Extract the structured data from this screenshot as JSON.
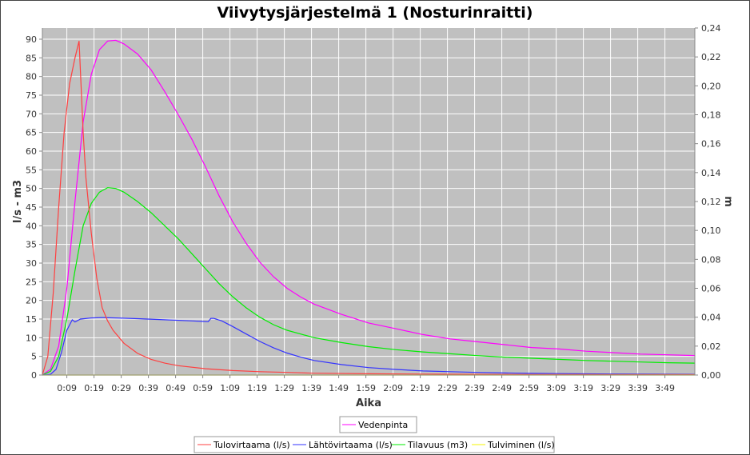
{
  "chart_data": {
    "type": "line",
    "title": "Viivytysjärjestelmä 1 (Nosturinraitti)",
    "xlabel": "Aika",
    "ylabel": "l/s - m3",
    "ylabel_right": "m",
    "grid": true,
    "legend_placement": "bottom",
    "x_unit": "minutes",
    "xlim": [
      0,
      240
    ],
    "ylim": [
      0,
      93
    ],
    "ylim_right": [
      0,
      0.24
    ],
    "x_ticks": [
      "0:09",
      "0:19",
      "0:29",
      "0:39",
      "0:49",
      "0:59",
      "1:09",
      "1:19",
      "1:29",
      "1:39",
      "1:49",
      "1:59",
      "2:09",
      "2:19",
      "2:29",
      "2:39",
      "2:49",
      "2:59",
      "3:09",
      "3:19",
      "3:29",
      "3:39",
      "3:49"
    ],
    "y_ticks": [
      "0",
      "5",
      "10",
      "15",
      "20",
      "25",
      "30",
      "35",
      "40",
      "45",
      "50",
      "55",
      "60",
      "65",
      "70",
      "75",
      "80",
      "85",
      "90"
    ],
    "y_ticks_right": [
      "0,00",
      "0,02",
      "0,04",
      "0,06",
      "0,08",
      "0,10",
      "0,12",
      "0,14",
      "0,16",
      "0,18",
      "0,20",
      "0,22",
      "0,24"
    ],
    "legend_top": [
      "Vedenpinta"
    ],
    "legend_bottom": [
      "Tulovirtaama (l/s)",
      "Lähtövirtaama (l/s)",
      "Tilavuus (m3)",
      "Tulviminen (l/s)"
    ],
    "series": [
      {
        "name": "Vedenpinta",
        "axis": "right",
        "color": "#ff00ff",
        "points": [
          [
            0,
            0.0
          ],
          [
            3,
            0.004
          ],
          [
            6,
            0.02
          ],
          [
            9,
            0.06
          ],
          [
            12,
            0.12
          ],
          [
            15,
            0.175
          ],
          [
            18,
            0.208
          ],
          [
            21,
            0.225
          ],
          [
            24,
            0.231
          ],
          [
            27,
            0.2315
          ],
          [
            30,
            0.229
          ],
          [
            35,
            0.222
          ],
          [
            40,
            0.211
          ],
          [
            45,
            0.196
          ],
          [
            50,
            0.18
          ],
          [
            55,
            0.163
          ],
          [
            60,
            0.144
          ],
          [
            65,
            0.124
          ],
          [
            70,
            0.106
          ],
          [
            75,
            0.091
          ],
          [
            80,
            0.078
          ],
          [
            85,
            0.068
          ],
          [
            90,
            0.06
          ],
          [
            95,
            0.054
          ],
          [
            100,
            0.049
          ],
          [
            110,
            0.042
          ],
          [
            120,
            0.036
          ],
          [
            130,
            0.032
          ],
          [
            140,
            0.028
          ],
          [
            150,
            0.025
          ],
          [
            160,
            0.023
          ],
          [
            170,
            0.021
          ],
          [
            180,
            0.019
          ],
          [
            190,
            0.018
          ],
          [
            200,
            0.0165
          ],
          [
            210,
            0.0155
          ],
          [
            220,
            0.0145
          ],
          [
            230,
            0.014
          ],
          [
            240,
            0.0135
          ]
        ]
      },
      {
        "name": "Tilavuus (m3)",
        "axis": "left",
        "color": "#00ee00",
        "points": [
          [
            0,
            0
          ],
          [
            3,
            1
          ],
          [
            6,
            5
          ],
          [
            9,
            15
          ],
          [
            12,
            28
          ],
          [
            15,
            40
          ],
          [
            18,
            46
          ],
          [
            21,
            49
          ],
          [
            24,
            50.2
          ],
          [
            27,
            50
          ],
          [
            30,
            49
          ],
          [
            35,
            46.5
          ],
          [
            40,
            43.5
          ],
          [
            45,
            40
          ],
          [
            50,
            36.5
          ],
          [
            55,
            32.5
          ],
          [
            60,
            28.5
          ],
          [
            65,
            24.5
          ],
          [
            70,
            21
          ],
          [
            75,
            18
          ],
          [
            80,
            15.5
          ],
          [
            85,
            13.5
          ],
          [
            90,
            12
          ],
          [
            95,
            11
          ],
          [
            100,
            10
          ],
          [
            110,
            8.7
          ],
          [
            120,
            7.6
          ],
          [
            130,
            6.8
          ],
          [
            140,
            6.2
          ],
          [
            150,
            5.7
          ],
          [
            160,
            5.2
          ],
          [
            170,
            4.8
          ],
          [
            180,
            4.5
          ],
          [
            190,
            4.2
          ],
          [
            200,
            3.9
          ],
          [
            210,
            3.7
          ],
          [
            220,
            3.5
          ],
          [
            230,
            3.3
          ],
          [
            240,
            3.2
          ]
        ]
      },
      {
        "name": "Lähtövirtaama (l/s)",
        "axis": "left",
        "color": "#3333ff",
        "points": [
          [
            0,
            0
          ],
          [
            3,
            0.2
          ],
          [
            5,
            1.5
          ],
          [
            7,
            6
          ],
          [
            9,
            12
          ],
          [
            11,
            14.8
          ],
          [
            12,
            14.2
          ],
          [
            14,
            15
          ],
          [
            18,
            15.3
          ],
          [
            22,
            15.4
          ],
          [
            27,
            15.3
          ],
          [
            35,
            15.1
          ],
          [
            45,
            14.8
          ],
          [
            55,
            14.5
          ],
          [
            61,
            14.3
          ],
          [
            62,
            15.2
          ],
          [
            63,
            15.2
          ],
          [
            66,
            14.5
          ],
          [
            70,
            13
          ],
          [
            75,
            11
          ],
          [
            80,
            9
          ],
          [
            85,
            7.3
          ],
          [
            90,
            5.9
          ],
          [
            95,
            4.8
          ],
          [
            100,
            3.9
          ],
          [
            110,
            2.8
          ],
          [
            120,
            2
          ],
          [
            130,
            1.5
          ],
          [
            140,
            1.1
          ],
          [
            150,
            0.9
          ],
          [
            160,
            0.7
          ],
          [
            170,
            0.55
          ],
          [
            180,
            0.45
          ],
          [
            190,
            0.38
          ],
          [
            200,
            0.32
          ],
          [
            210,
            0.28
          ],
          [
            220,
            0.25
          ],
          [
            230,
            0.22
          ],
          [
            240,
            0.2
          ]
        ]
      },
      {
        "name": "Tulovirtaama (l/s)",
        "axis": "left",
        "color": "#ff4040",
        "points": [
          [
            0,
            0
          ],
          [
            2,
            5
          ],
          [
            4,
            22
          ],
          [
            6,
            45
          ],
          [
            8,
            65
          ],
          [
            10,
            78
          ],
          [
            12,
            85
          ],
          [
            13.5,
            89.5
          ],
          [
            15,
            65
          ],
          [
            16,
            53
          ],
          [
            18,
            38
          ],
          [
            20,
            26
          ],
          [
            22,
            18
          ],
          [
            24,
            14.5
          ],
          [
            26,
            12
          ],
          [
            30,
            8.5
          ],
          [
            35,
            5.8
          ],
          [
            40,
            4.2
          ],
          [
            45,
            3.2
          ],
          [
            50,
            2.5
          ],
          [
            60,
            1.7
          ],
          [
            70,
            1.2
          ],
          [
            80,
            0.9
          ],
          [
            90,
            0.7
          ],
          [
            100,
            0.5
          ],
          [
            120,
            0.35
          ],
          [
            140,
            0.25
          ],
          [
            160,
            0.2
          ],
          [
            180,
            0.15
          ],
          [
            200,
            0.12
          ],
          [
            220,
            0.1
          ],
          [
            240,
            0.1
          ]
        ]
      },
      {
        "name": "Tulviminen (l/s)",
        "axis": "left",
        "color": "#f5f500",
        "points": [
          [
            0,
            0
          ],
          [
            240,
            0
          ]
        ]
      }
    ]
  }
}
